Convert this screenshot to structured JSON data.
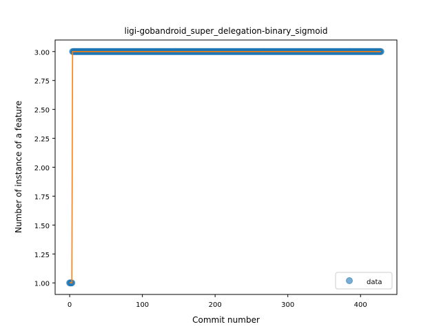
{
  "chart_data": {
    "type": "scatter",
    "title": "ligi-gobandroid_super_delegation-binary_sigmoid",
    "xlabel": "Commit number",
    "ylabel": "Number of instance of a feature",
    "xlim": [
      -20,
      450
    ],
    "ylim": [
      0.9,
      3.1
    ],
    "xticks": [
      0,
      100,
      200,
      300,
      400
    ],
    "yticks": [
      1.0,
      1.25,
      1.5,
      1.75,
      2.0,
      2.25,
      2.5,
      2.75,
      3.0
    ],
    "ytick_labels": [
      "1.00",
      "1.25",
      "1.50",
      "1.75",
      "2.00",
      "2.25",
      "2.50",
      "2.75",
      "3.00"
    ],
    "legend": {
      "position": "lower-right",
      "entries": [
        "data"
      ]
    },
    "grid": false,
    "series": [
      {
        "name": "data",
        "kind": "scatter",
        "color": "#1f77b4",
        "points": [
          {
            "x_range": [
              0,
              3
            ],
            "y": 1.0
          },
          {
            "x_range": [
              4,
              428
            ],
            "y": 3.0
          }
        ]
      },
      {
        "kind": "line",
        "color": "#ff7f0e",
        "x": [
          0,
          3,
          4,
          428
        ],
        "y": [
          1.0,
          1.0,
          3.0,
          3.0
        ]
      }
    ]
  }
}
